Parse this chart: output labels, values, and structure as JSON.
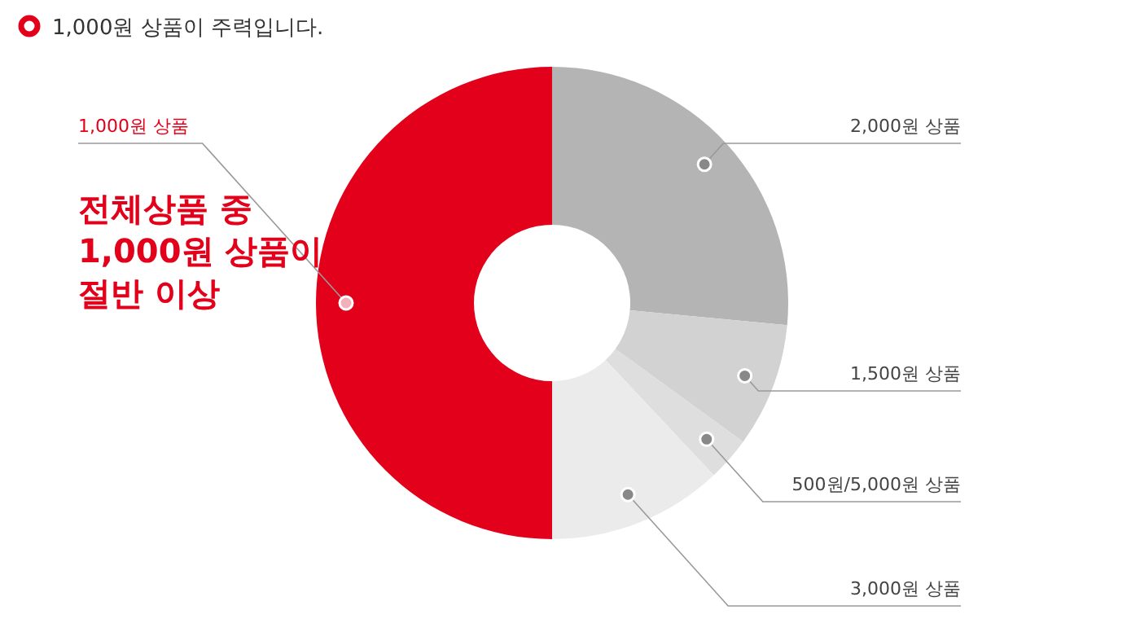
{
  "chart_data": {
    "type": "donut",
    "title": "1,000원 상품이 주력입니다.",
    "categories": [
      "2,000원 상품",
      "1,500원 상품",
      "500원/5,000원 상품",
      "3,000원 상품",
      "1,000원 상품"
    ],
    "values": [
      26.5,
      8.5,
      3,
      12,
      50
    ],
    "colors": [
      "#b4b4b4",
      "#d2d2d2",
      "#dedede",
      "#ebebeb",
      "#e2001a"
    ],
    "annotations": [
      "전체상품 중\n1,000원 상품이\n절반 이상"
    ]
  }
}
